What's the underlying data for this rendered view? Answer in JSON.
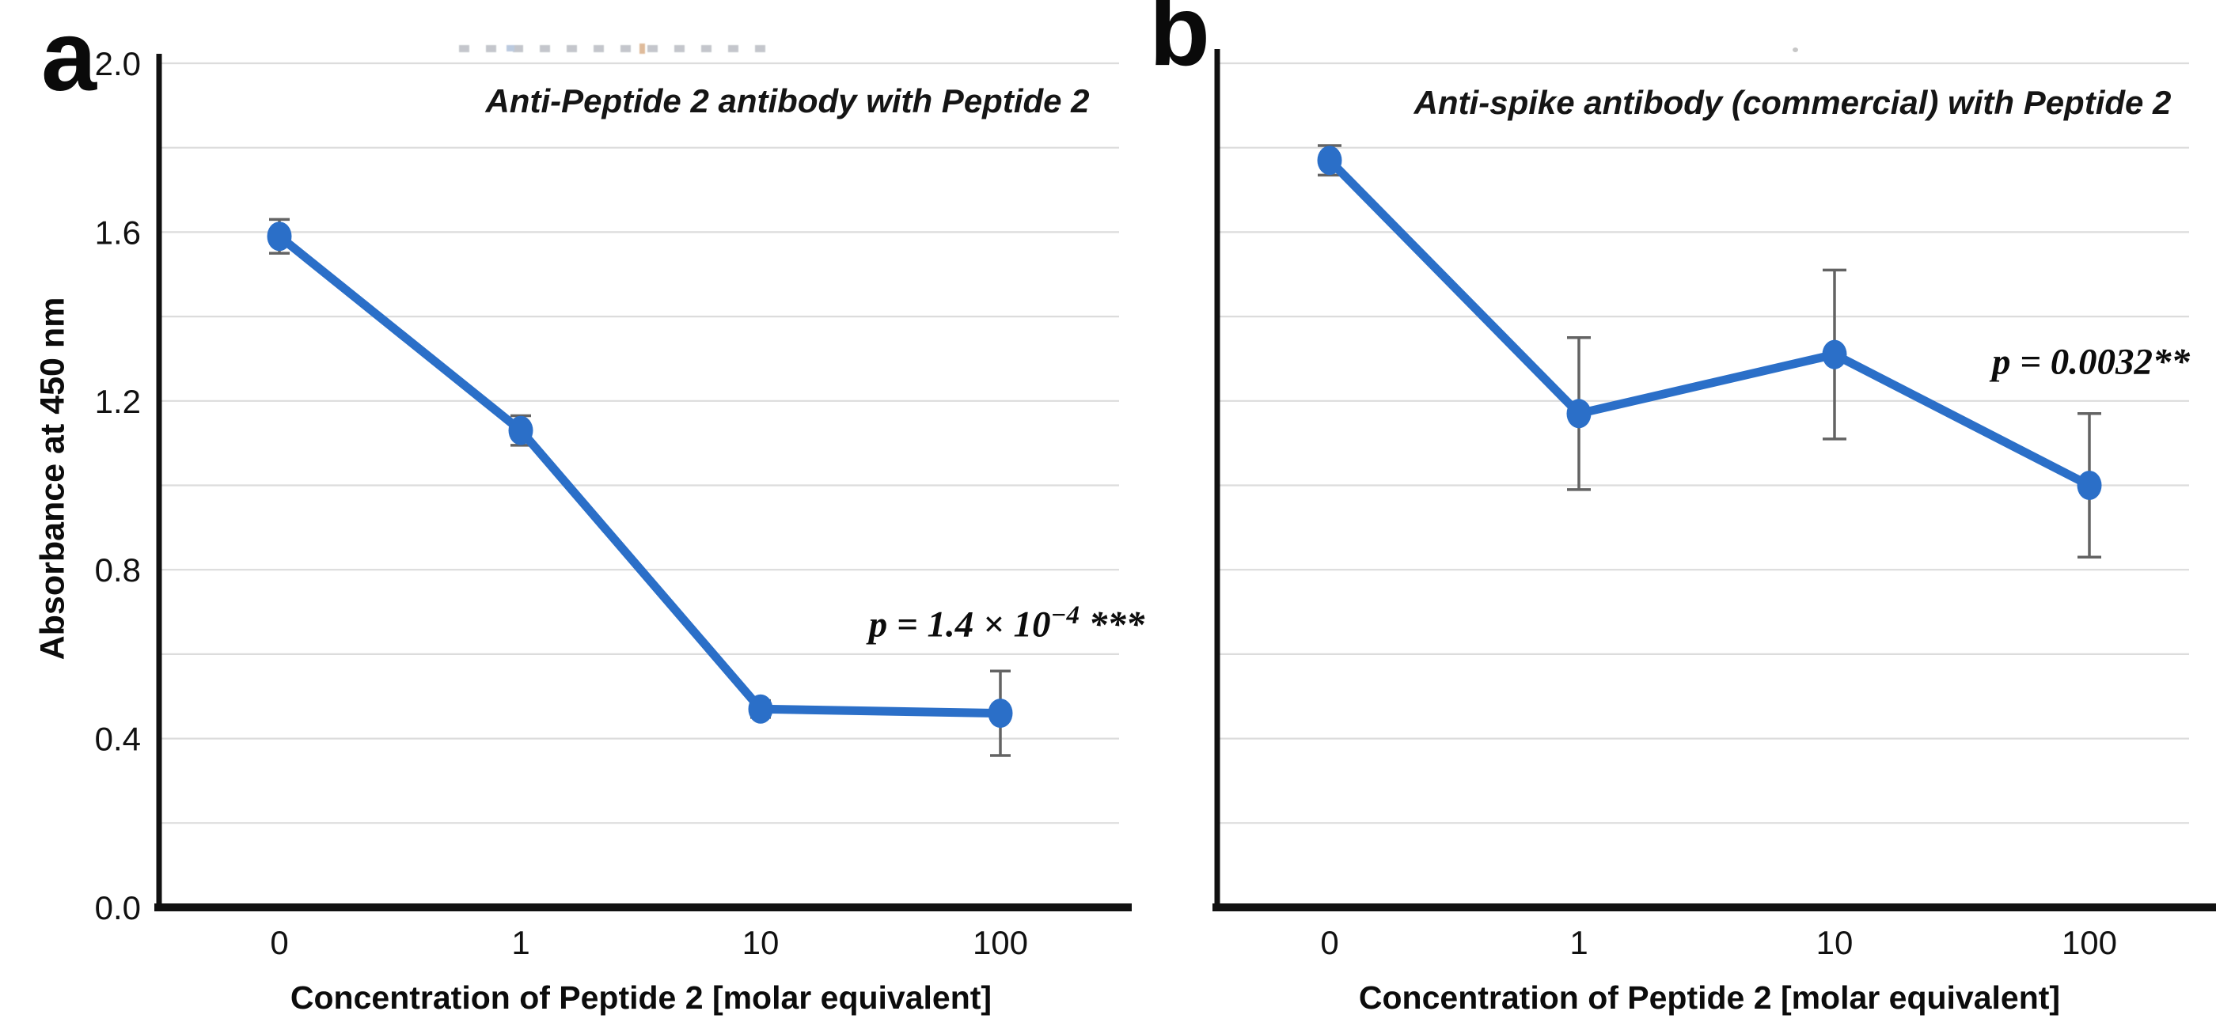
{
  "figure": {
    "y_axis_title": "Absorbance at 450 nm",
    "x_axis_title": "Concentration of Peptide 2 [molar equivalent]",
    "colors": {
      "line": "#2b6fc8",
      "error_bar": "#636363",
      "gridline": "#dcdcdc",
      "axis": "#111111",
      "text": "#111111"
    }
  },
  "panels": [
    {
      "letter": "a",
      "title": "Anti-Peptide 2 antibody with Peptide 2",
      "p_annotation": {
        "prefix": "p = 1.4 × 10",
        "superscript": "−4",
        "suffix": " ***"
      }
    },
    {
      "letter": "b",
      "title": "Anti-spike antibody (commercial) with Peptide 2",
      "p_annotation": {
        "prefix": "p = 0.0032**",
        "superscript": "",
        "suffix": ""
      }
    }
  ],
  "chart_data": [
    {
      "type": "line",
      "title": "Anti-Peptide 2 antibody with Peptide 2",
      "x_categories": [
        "0",
        "1",
        "10",
        "100"
      ],
      "values": [
        1.59,
        1.13,
        0.47,
        0.46
      ],
      "y_errors": [
        0.04,
        0.035,
        0.02,
        0.1
      ],
      "p_value_label": "p = 1.4 × 10^−4 ***",
      "xlabel": "Concentration of Peptide 2 [molar equivalent]",
      "ylabel": "Absorbance at 450 nm",
      "ylim": [
        0.0,
        2.0
      ],
      "yticks": [
        2.0,
        1.6,
        1.2,
        0.8,
        0.4,
        0.0
      ],
      "ytick_labels": [
        "2.0",
        "1.6",
        "1.2",
        "0.8",
        "0.4",
        "0.0"
      ],
      "grid_step": 0.2,
      "grid": true,
      "legend": "none"
    },
    {
      "type": "line",
      "title": "Anti-spike antibody (commercial) with Peptide 2",
      "x_categories": [
        "0",
        "1",
        "10",
        "100"
      ],
      "values": [
        1.77,
        1.17,
        1.31,
        1.0
      ],
      "y_errors": [
        0.035,
        0.18,
        0.2,
        0.17
      ],
      "p_value_label": "p = 0.0032**",
      "xlabel": "Concentration of Peptide 2 [molar equivalent]",
      "ylabel": "",
      "ylim": [
        0.0,
        2.0
      ],
      "yticks": [],
      "ytick_labels": [],
      "grid_step": 0.2,
      "grid": true,
      "legend": "none"
    }
  ]
}
